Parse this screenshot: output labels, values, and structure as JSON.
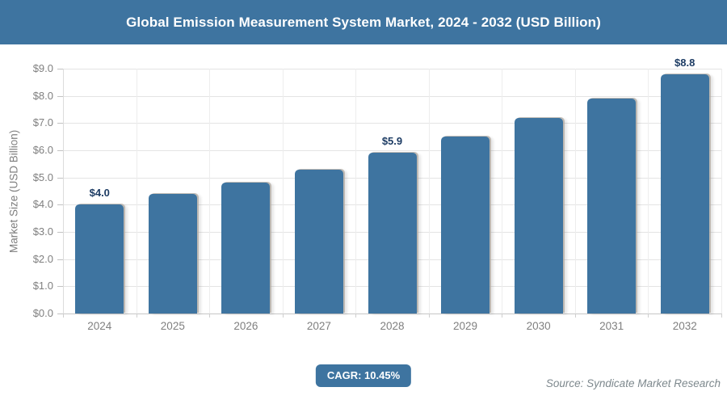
{
  "header": {
    "title": "Global Emission Measurement System Market, 2024 - 2032 (USD Billion)"
  },
  "colors": {
    "accent": "#3E74A0",
    "grid": "#e4e4e4",
    "axis_text": "#7f7f7f",
    "data_label": "#1d3c64"
  },
  "chart_data": {
    "type": "bar",
    "title": "Global Emission Measurement System Market, 2024 - 2032 (USD Billion)",
    "categories": [
      "2024",
      "2025",
      "2026",
      "2027",
      "2028",
      "2029",
      "2030",
      "2031",
      "2032"
    ],
    "values": [
      4.0,
      4.4,
      4.8,
      5.3,
      5.9,
      6.5,
      7.2,
      7.9,
      8.8
    ],
    "data_labels": [
      "$4.0",
      "",
      "",
      "",
      "$5.9",
      "",
      "",
      "",
      "$8.8"
    ],
    "xlabel": "",
    "ylabel": "Market Size (USD Billion)",
    "ylim": [
      0,
      9
    ],
    "ytick_step": 1,
    "ytick_labels": [
      "$0.0",
      "$1.0",
      "$2.0",
      "$3.0",
      "$4.0",
      "$5.0",
      "$6.0",
      "$7.0",
      "$8.0",
      "$9.0"
    ],
    "grid": true,
    "legend": false,
    "bar_color": "#3E74A0"
  },
  "footer": {
    "cagr_label": "CAGR: 10.45%",
    "source": "Source: Syndicate Market Research"
  }
}
